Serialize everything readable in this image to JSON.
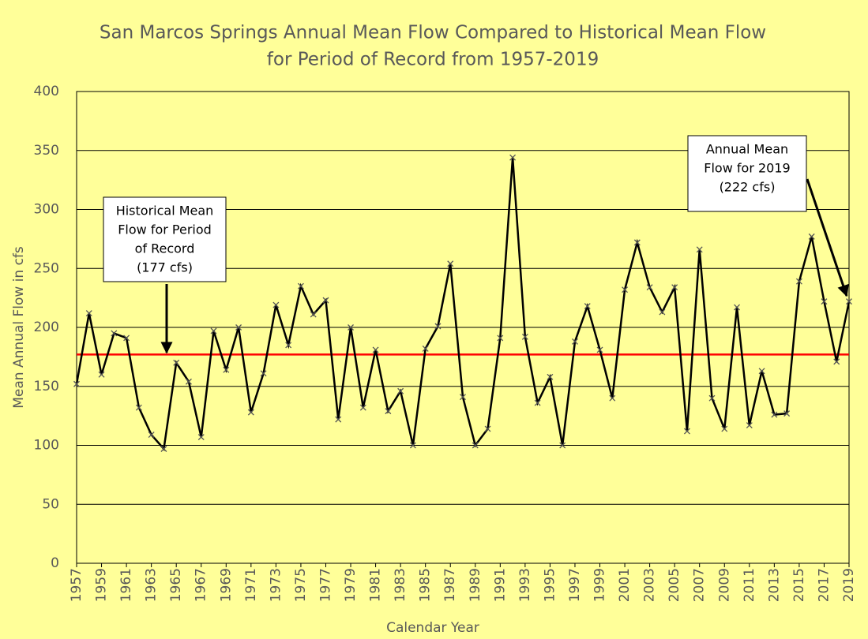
{
  "chart_data": {
    "type": "line",
    "title": [
      "San Marcos Springs Annual Mean Flow Compared to Historical Mean Flow",
      "for Period of Record from 1957-2019"
    ],
    "x_label": "Calendar Year",
    "y_label": "Mean Annual Flow in cfs",
    "x": [
      1957,
      1958,
      1959,
      1960,
      1961,
      1962,
      1963,
      1964,
      1965,
      1966,
      1967,
      1968,
      1969,
      1970,
      1971,
      1972,
      1973,
      1974,
      1975,
      1976,
      1977,
      1978,
      1979,
      1980,
      1981,
      1982,
      1983,
      1984,
      1985,
      1986,
      1987,
      1988,
      1989,
      1990,
      1991,
      1992,
      1993,
      1994,
      1995,
      1996,
      1997,
      1998,
      1999,
      2000,
      2001,
      2002,
      2003,
      2004,
      2005,
      2006,
      2007,
      2008,
      2009,
      2010,
      2011,
      2012,
      2013,
      2014,
      2015,
      2016,
      2017,
      2018,
      2019
    ],
    "series": [
      {
        "color": "#000000",
        "marker_color": "#555555",
        "values": [
          152,
          212,
          160,
          195,
          191,
          132,
          109,
          97,
          170,
          154,
          107,
          197,
          164,
          200,
          128,
          161,
          219,
          185,
          235,
          211,
          223,
          122,
          200,
          132,
          181,
          129,
          146,
          100,
          182,
          201,
          254,
          141,
          100,
          114,
          191,
          344,
          192,
          136,
          158,
          100,
          188,
          218,
          181,
          140,
          232,
          272,
          234,
          213,
          234,
          112,
          266,
          140,
          114,
          217,
          117,
          163,
          126,
          127,
          239,
          277,
          222,
          171,
          222
        ]
      }
    ],
    "mean_line": {
      "value": 177,
      "color": "#ff0000"
    },
    "xlim": [
      1957,
      2019
    ],
    "xticks": [
      1957,
      1959,
      1961,
      1963,
      1965,
      1967,
      1969,
      1971,
      1973,
      1975,
      1977,
      1979,
      1981,
      1983,
      1985,
      1987,
      1989,
      1991,
      1993,
      1995,
      1997,
      1999,
      2001,
      2003,
      2005,
      2007,
      2009,
      2011,
      2013,
      2015,
      2017,
      2019
    ],
    "ylim": [
      0,
      400
    ],
    "yticks": [
      0,
      50,
      100,
      150,
      200,
      250,
      300,
      350,
      400
    ],
    "grid": true,
    "annotations": [
      {
        "lines": [
          "Historical Mean",
          "Flow for Period",
          "of Record",
          "(177 cfs)"
        ]
      },
      {
        "lines": [
          "Annual Mean",
          "Flow for 2019",
          "(222 cfs)"
        ]
      }
    ]
  }
}
